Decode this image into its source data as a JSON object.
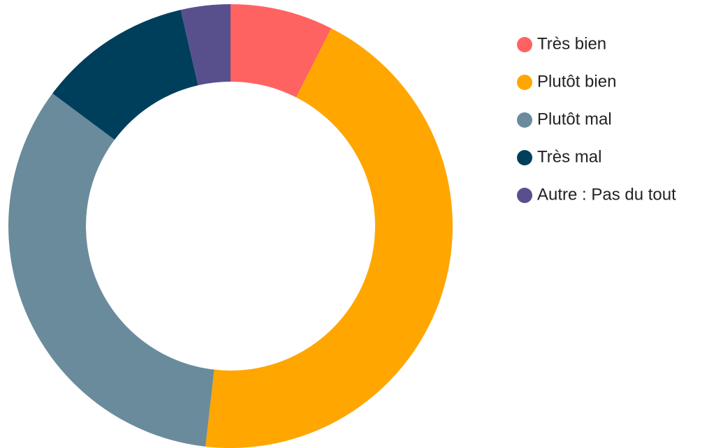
{
  "chart_data": {
    "type": "donut",
    "categories": [
      "Très bien",
      "Plutôt bien",
      "Plutôt mal",
      "Très mal",
      "Autre : Pas du tout"
    ],
    "values": [
      7.5,
      44.3,
      33.4,
      11.2,
      3.6
    ],
    "colors": [
      "#ff6361",
      "#ffa600",
      "#6a8b9c",
      "#003f5c",
      "#58508d"
    ],
    "legend": "right"
  }
}
